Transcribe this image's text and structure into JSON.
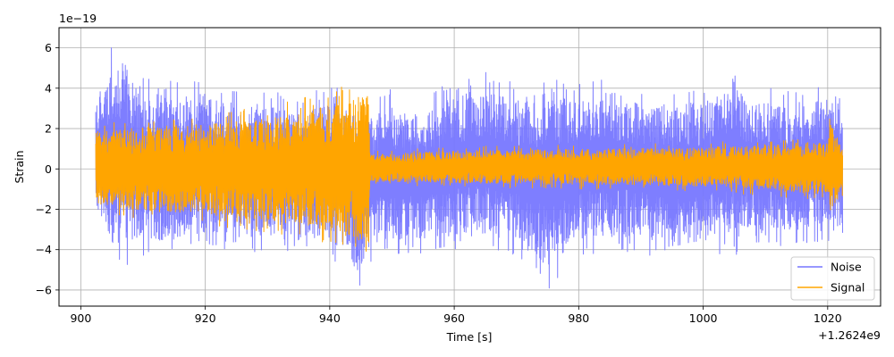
{
  "chart_data": {
    "type": "line",
    "xlabel": "Time [s]",
    "ylabel": "Strain",
    "x_offset_label": "+1.2624e9",
    "y_scale_label": "1e−19",
    "xlim": [
      896.5,
      1028.5
    ],
    "ylim": [
      -6.8,
      7.0
    ],
    "x_ticks": [
      900,
      920,
      940,
      960,
      980,
      1000,
      1020
    ],
    "x_tick_labels": [
      "900",
      "920",
      "940",
      "960",
      "980",
      "1000",
      "1020"
    ],
    "y_ticks": [
      -6,
      -4,
      -2,
      0,
      2,
      4,
      6
    ],
    "y_tick_labels": [
      "−6",
      "−4",
      "−2",
      "0",
      "2",
      "4",
      "6"
    ],
    "grid": true,
    "legend_position": "bottom-right",
    "series": [
      {
        "name": "Noise",
        "color": "#7777ff",
        "x_range": [
          902.4,
          1022.4
        ],
        "envelope": [
          {
            "x": 902.4,
            "min": -2.2,
            "max": 3.0
          },
          {
            "x": 905,
            "min": -5.0,
            "max": 6.4
          },
          {
            "x": 907,
            "min": -5.1,
            "max": 6.4
          },
          {
            "x": 910,
            "min": -4.5,
            "max": 4.8
          },
          {
            "x": 915,
            "min": -4.4,
            "max": 4.4
          },
          {
            "x": 920,
            "min": -4.0,
            "max": 4.6
          },
          {
            "x": 925,
            "min": -4.2,
            "max": 4.1
          },
          {
            "x": 930,
            "min": -4.3,
            "max": 4.0
          },
          {
            "x": 935,
            "min": -4.3,
            "max": 3.5
          },
          {
            "x": 940,
            "min": -4.3,
            "max": 4.2
          },
          {
            "x": 944.5,
            "min": -6.1,
            "max": 3.8
          },
          {
            "x": 947,
            "min": -4.5,
            "max": 3.6
          },
          {
            "x": 950,
            "min": -4.4,
            "max": 4.0
          },
          {
            "x": 955,
            "min": -4.2,
            "max": 3.5
          },
          {
            "x": 960,
            "min": -4.2,
            "max": 4.5
          },
          {
            "x": 965,
            "min": -4.3,
            "max": 5.0
          },
          {
            "x": 970,
            "min": -4.3,
            "max": 4.2
          },
          {
            "x": 975,
            "min": -6.2,
            "max": 5.2
          },
          {
            "x": 980,
            "min": -4.4,
            "max": 4.2
          },
          {
            "x": 985,
            "min": -4.3,
            "max": 4.8
          },
          {
            "x": 990,
            "min": -4.2,
            "max": 4.1
          },
          {
            "x": 995,
            "min": -4.8,
            "max": 4.2
          },
          {
            "x": 1000,
            "min": -4.4,
            "max": 4.2
          },
          {
            "x": 1005,
            "min": -4.3,
            "max": 4.9
          },
          {
            "x": 1010,
            "min": -4.1,
            "max": 4.1
          },
          {
            "x": 1015,
            "min": -3.8,
            "max": 3.8
          },
          {
            "x": 1020,
            "min": -3.6,
            "max": 4.4
          },
          {
            "x": 1022.4,
            "min": -3.6,
            "max": 3.8
          }
        ]
      },
      {
        "name": "Signal",
        "color": "#ffa500",
        "x_range": [
          902.4,
          1022.4
        ],
        "envelope": [
          {
            "x": 902.4,
            "min": -2.2,
            "max": 2.3
          },
          {
            "x": 910,
            "min": -2.6,
            "max": 2.6
          },
          {
            "x": 920,
            "min": -2.8,
            "max": 2.8
          },
          {
            "x": 930,
            "min": -3.2,
            "max": 3.1
          },
          {
            "x": 940,
            "min": -3.8,
            "max": 3.9
          },
          {
            "x": 945,
            "min": -4.5,
            "max": 4.6
          },
          {
            "x": 946.3,
            "min": -5.0,
            "max": 5.4
          },
          {
            "x": 946.5,
            "min": -0.8,
            "max": 0.9
          },
          {
            "x": 960,
            "min": -0.9,
            "max": 1.1
          },
          {
            "x": 980,
            "min": -1.0,
            "max": 1.2
          },
          {
            "x": 1000,
            "min": -1.1,
            "max": 1.3
          },
          {
            "x": 1020,
            "min": -1.6,
            "max": 1.7
          },
          {
            "x": 1020.4,
            "min": -2.6,
            "max": 2.8
          },
          {
            "x": 1022.4,
            "min": -1.4,
            "max": 1.4
          }
        ]
      }
    ]
  }
}
